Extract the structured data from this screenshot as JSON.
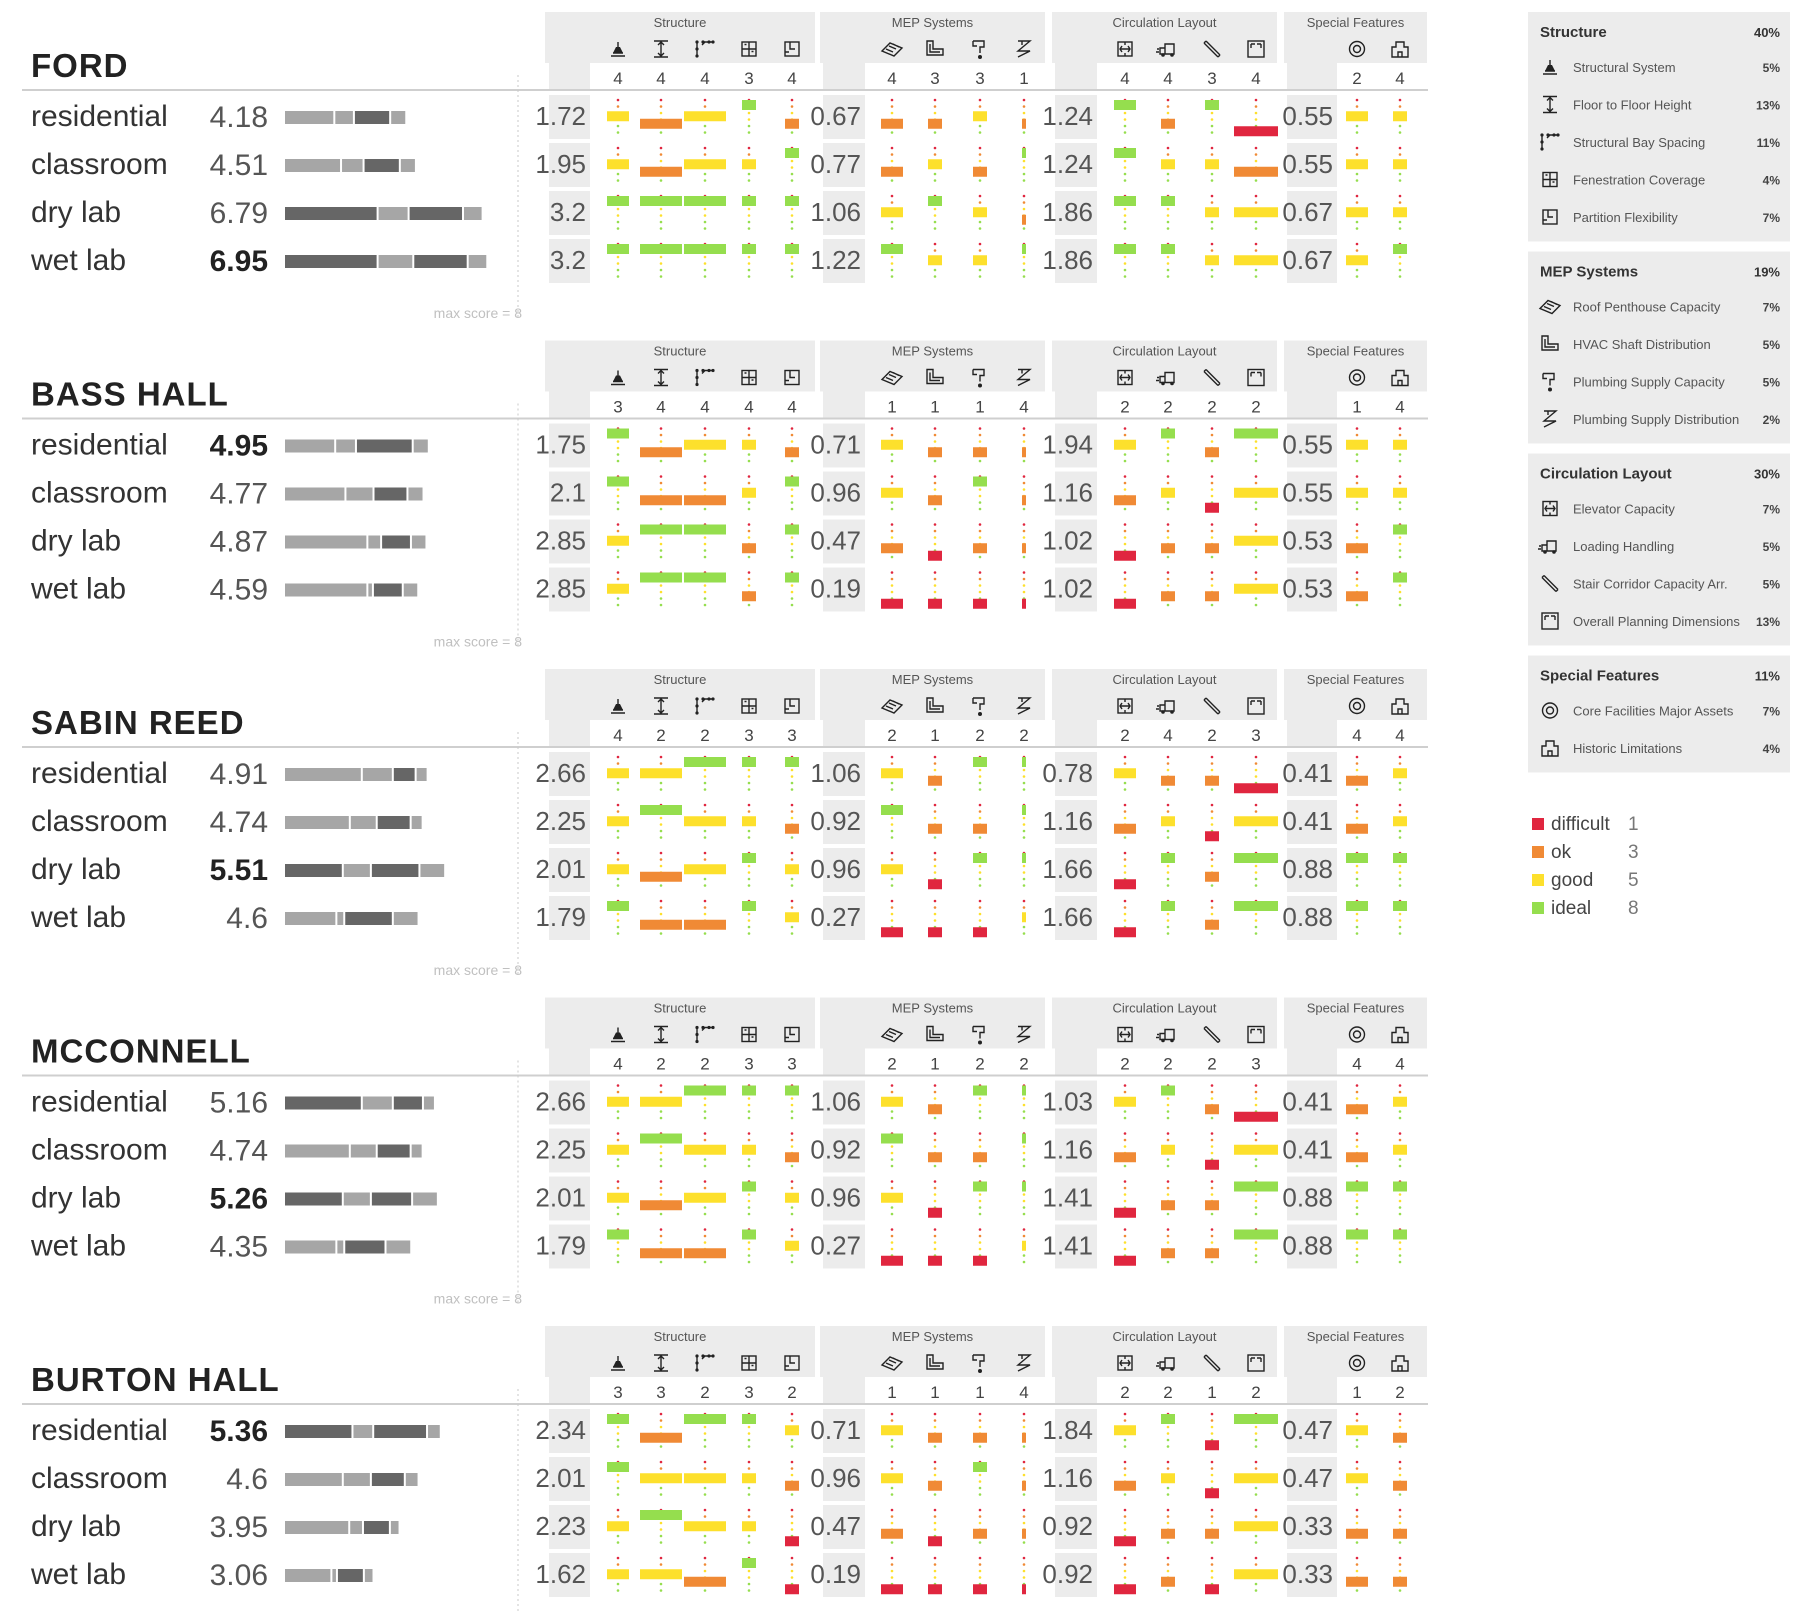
{
  "colors": {
    "difficult": "#e0263f",
    "ok": "#f08a35",
    "good": "#fde02c",
    "ideal": "#95de4e",
    "bar_dark": "#666666",
    "bar_light": "#a6a6a6",
    "panel": "#ececec"
  },
  "legend": [
    {
      "key": "difficult",
      "label": "difficult",
      "value": "1"
    },
    {
      "key": "ok",
      "label": "ok",
      "value": "3"
    },
    {
      "key": "good",
      "label": "good",
      "value": "5"
    },
    {
      "key": "ideal",
      "label": "ideal",
      "value": "8"
    }
  ],
  "criteria_panel": [
    {
      "title": "Structure",
      "weight": "40%",
      "items": [
        {
          "icon": "structural-system-icon",
          "label": "Structural System",
          "weight": "5%"
        },
        {
          "icon": "floor-height-icon",
          "label": "Floor to Floor Height",
          "weight": "13%"
        },
        {
          "icon": "bay-spacing-icon",
          "label": "Structural Bay Spacing",
          "weight": "11%"
        },
        {
          "icon": "fenestration-icon",
          "label": "Fenestration Coverage",
          "weight": "4%"
        },
        {
          "icon": "partition-icon",
          "label": "Partition Flexibility",
          "weight": "7%"
        }
      ]
    },
    {
      "title": "MEP Systems",
      "weight": "19%",
      "items": [
        {
          "icon": "roof-penthouse-icon",
          "label": "Roof Penthouse Capacity",
          "weight": "7%"
        },
        {
          "icon": "hvac-shaft-icon",
          "label": "HVAC Shaft Distribution",
          "weight": "5%"
        },
        {
          "icon": "plumbing-capacity-icon",
          "label": "Plumbing Supply Capacity",
          "weight": "5%"
        },
        {
          "icon": "plumbing-distribution-icon",
          "label": "Plumbing Supply Distribution",
          "weight": "2%"
        }
      ]
    },
    {
      "title": "Circulation Layout",
      "weight": "30%",
      "items": [
        {
          "icon": "elevator-icon",
          "label": "Elevator Capacity",
          "weight": "7%"
        },
        {
          "icon": "loading-icon",
          "label": "Loading Handling",
          "weight": "5%"
        },
        {
          "icon": "stair-icon",
          "label": "Stair Corridor Capacity Arr.",
          "weight": "5%"
        },
        {
          "icon": "planning-icon",
          "label": "Overall Planning Dimensions",
          "weight": "13%"
        }
      ]
    },
    {
      "title": "Special Features",
      "weight": "11%",
      "items": [
        {
          "icon": "core-facilities-icon",
          "label": "Core Facilities Major Assets",
          "weight": "7%"
        },
        {
          "icon": "historic-icon",
          "label": "Historic Limitations",
          "weight": "4%"
        }
      ]
    }
  ],
  "max_score_label": "max score = 8",
  "group_titles": [
    "Structure",
    "MEP Systems",
    "Circulation Layout",
    "Special Features"
  ],
  "column_icons": [
    "structural-system-icon",
    "floor-height-icon",
    "bay-spacing-icon",
    "fenestration-icon",
    "partition-icon",
    "roof-penthouse-icon",
    "hvac-shaft-icon",
    "plumbing-capacity-icon",
    "plumbing-distribution-icon",
    "elevator-icon",
    "loading-icon",
    "stair-icon",
    "planning-icon",
    "core-facilities-icon",
    "historic-icon"
  ],
  "chart_data": {
    "type": "table",
    "scale": {
      "difficult": 1,
      "ok": 3,
      "good": 5,
      "ideal": 8
    },
    "max_score": 8,
    "buildings": [
      {
        "name": "FORD",
        "ratings": [
          "4",
          "4",
          "4",
          "3",
          "4",
          "4",
          "3",
          "3",
          "1",
          "4",
          "4",
          "3",
          "4",
          "2",
          "4"
        ],
        "rows": [
          {
            "use": "residential",
            "score": "4.18",
            "bold": false,
            "sub": [
              "1.72",
              "0.67",
              "1.24",
              "0.55"
            ],
            "cells": [
              "good",
              "ok",
              "good",
              "ideal",
              "ok",
              "ok",
              "ok",
              "good",
              "ok",
              "ideal",
              "ok",
              "ideal",
              "difficult",
              "good",
              "good"
            ]
          },
          {
            "use": "classroom",
            "score": "4.51",
            "bold": false,
            "sub": [
              "1.95",
              "0.77",
              "1.24",
              "0.55"
            ],
            "cells": [
              "good",
              "ok",
              "good",
              "good",
              "ideal",
              "ok",
              "good",
              "ok",
              "ideal",
              "ideal",
              "good",
              "good",
              "ok",
              "good",
              "good"
            ]
          },
          {
            "use": "dry lab",
            "score": "6.79",
            "bold": false,
            "sub": [
              "3.2",
              "1.06",
              "1.86",
              "0.67"
            ],
            "cells": [
              "ideal",
              "ideal",
              "ideal",
              "ideal",
              "ideal",
              "good",
              "ideal",
              "good",
              "ok",
              "ideal",
              "ideal",
              "good",
              "good",
              "good",
              "good"
            ]
          },
          {
            "use": "wet lab",
            "score": "6.95",
            "bold": true,
            "sub": [
              "3.2",
              "1.22",
              "1.86",
              "0.67"
            ],
            "cells": [
              "ideal",
              "ideal",
              "ideal",
              "ideal",
              "ideal",
              "ideal",
              "good",
              "good",
              "ideal",
              "ideal",
              "ideal",
              "good",
              "good",
              "good",
              "ideal"
            ]
          }
        ]
      },
      {
        "name": "BASS HALL",
        "ratings": [
          "3",
          "4",
          "4",
          "4",
          "4",
          "1",
          "1",
          "1",
          "4",
          "2",
          "2",
          "2",
          "2",
          "1",
          "4"
        ],
        "rows": [
          {
            "use": "residential",
            "score": "4.95",
            "bold": true,
            "sub": [
              "1.75",
              "0.71",
              "1.94",
              "0.55"
            ],
            "cells": [
              "ideal",
              "ok",
              "good",
              "good",
              "ok",
              "good",
              "ok",
              "ok",
              "ok",
              "good",
              "ideal",
              "ok",
              "ideal",
              "good",
              "good"
            ]
          },
          {
            "use": "classroom",
            "score": "4.77",
            "bold": false,
            "sub": [
              "2.1",
              "0.96",
              "1.16",
              "0.55"
            ],
            "cells": [
              "ideal",
              "ok",
              "ok",
              "good",
              "ideal",
              "good",
              "ok",
              "ideal",
              "ok",
              "ok",
              "good",
              "difficult",
              "good",
              "good",
              "good"
            ]
          },
          {
            "use": "dry lab",
            "score": "4.87",
            "bold": false,
            "sub": [
              "2.85",
              "0.47",
              "1.02",
              "0.53"
            ],
            "cells": [
              "good",
              "ideal",
              "ideal",
              "ok",
              "ideal",
              "ok",
              "difficult",
              "ok",
              "ok",
              "difficult",
              "ok",
              "ok",
              "good",
              "ok",
              "ideal"
            ]
          },
          {
            "use": "wet lab",
            "score": "4.59",
            "bold": false,
            "sub": [
              "2.85",
              "0.19",
              "1.02",
              "0.53"
            ],
            "cells": [
              "good",
              "ideal",
              "ideal",
              "ok",
              "ideal",
              "difficult",
              "difficult",
              "difficult",
              "difficult",
              "difficult",
              "ok",
              "ok",
              "good",
              "ok",
              "ideal"
            ]
          }
        ]
      },
      {
        "name": "SABIN REED",
        "ratings": [
          "4",
          "2",
          "2",
          "3",
          "3",
          "2",
          "1",
          "2",
          "2",
          "2",
          "4",
          "2",
          "3",
          "4",
          "4"
        ],
        "rows": [
          {
            "use": "residential",
            "score": "4.91",
            "bold": false,
            "sub": [
              "2.66",
              "1.06",
              "0.78",
              "0.41"
            ],
            "cells": [
              "good",
              "good",
              "ideal",
              "ideal",
              "ideal",
              "good",
              "ok",
              "ideal",
              "ideal",
              "good",
              "ok",
              "ok",
              "difficult",
              "ok",
              "good"
            ]
          },
          {
            "use": "classroom",
            "score": "4.74",
            "bold": false,
            "sub": [
              "2.25",
              "0.92",
              "1.16",
              "0.41"
            ],
            "cells": [
              "good",
              "ideal",
              "good",
              "good",
              "ok",
              "ideal",
              "ok",
              "ok",
              "ideal",
              "ok",
              "good",
              "difficult",
              "good",
              "ok",
              "good"
            ]
          },
          {
            "use": "dry lab",
            "score": "5.51",
            "bold": true,
            "sub": [
              "2.01",
              "0.96",
              "1.66",
              "0.88"
            ],
            "cells": [
              "good",
              "ok",
              "good",
              "ideal",
              "good",
              "good",
              "difficult",
              "ideal",
              "ideal",
              "difficult",
              "ideal",
              "ok",
              "ideal",
              "ideal",
              "ideal"
            ]
          },
          {
            "use": "wet lab",
            "score": "4.6",
            "bold": false,
            "sub": [
              "1.79",
              "0.27",
              "1.66",
              "0.88"
            ],
            "cells": [
              "ideal",
              "ok",
              "ok",
              "ideal",
              "good",
              "difficult",
              "difficult",
              "difficult",
              "good",
              "difficult",
              "ideal",
              "ok",
              "ideal",
              "ideal",
              "ideal"
            ]
          }
        ]
      },
      {
        "name": "MCCONNELL",
        "ratings": [
          "4",
          "2",
          "2",
          "3",
          "3",
          "2",
          "1",
          "2",
          "2",
          "2",
          "2",
          "2",
          "3",
          "4",
          "4"
        ],
        "rows": [
          {
            "use": "residential",
            "score": "5.16",
            "bold": false,
            "sub": [
              "2.66",
              "1.06",
              "1.03",
              "0.41"
            ],
            "cells": [
              "good",
              "good",
              "ideal",
              "ideal",
              "ideal",
              "good",
              "ok",
              "ideal",
              "ideal",
              "good",
              "ideal",
              "ok",
              "difficult",
              "ok",
              "good"
            ]
          },
          {
            "use": "classroom",
            "score": "4.74",
            "bold": false,
            "sub": [
              "2.25",
              "0.92",
              "1.16",
              "0.41"
            ],
            "cells": [
              "good",
              "ideal",
              "good",
              "good",
              "ok",
              "ideal",
              "ok",
              "ok",
              "ideal",
              "ok",
              "good",
              "difficult",
              "good",
              "ok",
              "good"
            ]
          },
          {
            "use": "dry lab",
            "score": "5.26",
            "bold": true,
            "sub": [
              "2.01",
              "0.96",
              "1.41",
              "0.88"
            ],
            "cells": [
              "good",
              "ok",
              "good",
              "ideal",
              "good",
              "good",
              "difficult",
              "ideal",
              "ideal",
              "difficult",
              "ok",
              "ok",
              "ideal",
              "ideal",
              "ideal"
            ]
          },
          {
            "use": "wet lab",
            "score": "4.35",
            "bold": false,
            "sub": [
              "1.79",
              "0.27",
              "1.41",
              "0.88"
            ],
            "cells": [
              "ideal",
              "ok",
              "ok",
              "ideal",
              "good",
              "difficult",
              "difficult",
              "difficult",
              "good",
              "difficult",
              "ok",
              "ok",
              "ideal",
              "ideal",
              "ideal"
            ]
          }
        ]
      },
      {
        "name": "BURTON HALL",
        "ratings": [
          "3",
          "3",
          "2",
          "3",
          "2",
          "1",
          "1",
          "1",
          "4",
          "2",
          "2",
          "1",
          "2",
          "1",
          "2"
        ],
        "rows": [
          {
            "use": "residential",
            "score": "5.36",
            "bold": true,
            "sub": [
              "2.34",
              "0.71",
              "1.84",
              "0.47"
            ],
            "cells": [
              "ideal",
              "ok",
              "ideal",
              "ideal",
              "good",
              "good",
              "ok",
              "ok",
              "ok",
              "good",
              "ideal",
              "difficult",
              "ideal",
              "good",
              "ok"
            ]
          },
          {
            "use": "classroom",
            "score": "4.6",
            "bold": false,
            "sub": [
              "2.01",
              "0.96",
              "1.16",
              "0.47"
            ],
            "cells": [
              "ideal",
              "good",
              "good",
              "good",
              "ok",
              "good",
              "ok",
              "ideal",
              "ok",
              "ok",
              "good",
              "difficult",
              "good",
              "good",
              "ok"
            ]
          },
          {
            "use": "dry lab",
            "score": "3.95",
            "bold": false,
            "sub": [
              "2.23",
              "0.47",
              "0.92",
              "0.33"
            ],
            "cells": [
              "good",
              "ideal",
              "good",
              "good",
              "difficult",
              "ok",
              "difficult",
              "ok",
              "ok",
              "difficult",
              "ok",
              "ok",
              "good",
              "ok",
              "ok"
            ]
          },
          {
            "use": "wet lab",
            "score": "3.06",
            "bold": false,
            "sub": [
              "1.62",
              "0.19",
              "0.92",
              "0.33"
            ],
            "cells": [
              "good",
              "good",
              "ok",
              "ideal",
              "difficult",
              "difficult",
              "difficult",
              "difficult",
              "difficult",
              "difficult",
              "ok",
              "difficult",
              "good",
              "ok",
              "ok"
            ]
          }
        ]
      }
    ]
  }
}
